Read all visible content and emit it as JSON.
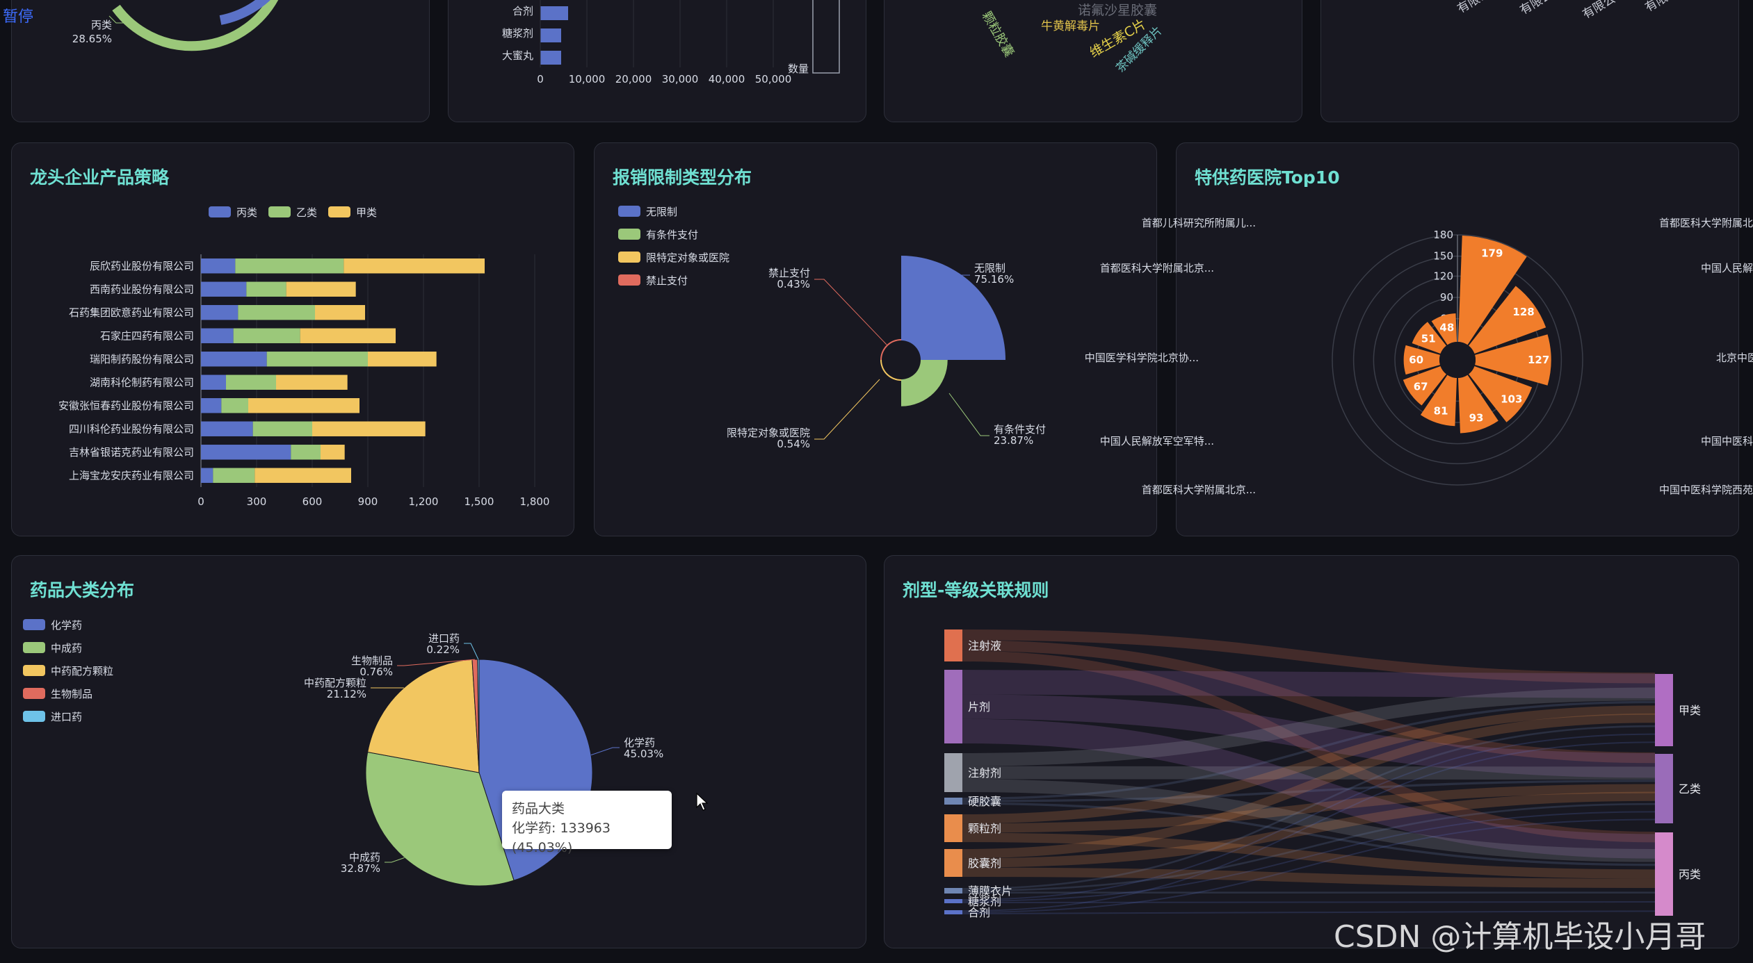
{
  "colors": {
    "blue": "#5b72c8",
    "green": "#9bc87a",
    "yellow": "#f2c660",
    "red": "#e06b5e",
    "cyan": "#6ec2e8",
    "orange": "#f17d2b",
    "title": "#6fe0d2"
  },
  "top": {
    "pause_label": "暂停",
    "ring_label": "丙类",
    "ring_pct": "28.65%",
    "bar_top_categories": [
      "合剂",
      "糖浆剂",
      "大蜜丸"
    ],
    "bar_top_ticks": [
      "0",
      "10,000",
      "20,000",
      "30,000",
      "40,000",
      "50,000"
    ],
    "bar_top_legend": "数量",
    "cloud_words": [
      "诺氟沙星胶囊",
      "牛黄解毒片",
      "维生素C片",
      "茶碱缓释片",
      "颗粒胶囊"
    ],
    "cloud4_words": [
      "有限公司",
      "有限公司",
      "有限公司",
      "有限公司"
    ]
  },
  "strategy": {
    "title": "龙头企业产品策略",
    "legend": [
      "丙类",
      "乙类",
      "甲类"
    ],
    "chart_data": {
      "type": "bar",
      "orientation": "horizontal-stacked",
      "categories": [
        "辰欣药业股份有限公司",
        "西南药业股份有限公司",
        "石药集团欧意药业有限公司",
        "石家庄四药有限公司",
        "瑞阳制药股份有限公司",
        "湖南科伦制药有限公司",
        "安徽张恒春药业股份有限公司",
        "四川科伦药业股份有限公司",
        "吉林省银诺克药业有限公司",
        "上海宝龙安庆药业有限公司"
      ],
      "series": [
        {
          "name": "丙类",
          "values": [
            185,
            245,
            200,
            175,
            355,
            135,
            110,
            280,
            485,
            65
          ]
        },
        {
          "name": "乙类",
          "values": [
            585,
            215,
            415,
            360,
            545,
            270,
            145,
            320,
            160,
            225
          ]
        },
        {
          "name": "甲类",
          "values": [
            760,
            375,
            270,
            515,
            370,
            385,
            600,
            610,
            130,
            520
          ]
        }
      ],
      "ticks": [
        "0",
        "300",
        "600",
        "900",
        "1,200",
        "1,500",
        "1,800"
      ],
      "xlim": [
        0,
        1800
      ]
    }
  },
  "reimb": {
    "title": "报销限制类型分布",
    "legend": [
      "无限制",
      "有条件支付",
      "限特定对象或医院",
      "禁止支付"
    ],
    "chart_data": {
      "type": "pie",
      "variant": "rose",
      "labels": [
        "无限制",
        "有条件支付",
        "限特定对象或医院",
        "禁止支付"
      ],
      "values": [
        75.16,
        23.87,
        0.54,
        0.43
      ],
      "pct_labels": [
        "75.16%",
        "23.87%",
        "0.54%",
        "0.43%"
      ]
    }
  },
  "hospitals": {
    "title": "特供药医院Top10",
    "chart_data": {
      "type": "bar",
      "variant": "polar",
      "labels": [
        "首都医科大学附属北京...",
        "中国人民解放军总医院...",
        "北京中医药大学东直门...",
        "中国中医科学院广安门...",
        "中国中医科学院西苑医...",
        "首都医科大学附属北京...",
        "中国人民解放军空军特...",
        "中国医学科学院北京协...",
        "首都医科大学附属北京...",
        "首都儿科研究所附属儿..."
      ],
      "values": [
        179,
        128,
        127,
        103,
        93,
        81,
        67,
        60,
        51,
        48
      ],
      "value_labels": [
        "179",
        "128",
        "127",
        "103",
        "93",
        "81",
        "67",
        "60",
        "51",
        "48"
      ],
      "ticks": [
        "60",
        "90",
        "120",
        "150",
        "180"
      ],
      "rmax": 180
    }
  },
  "category": {
    "title": "药品大类分布",
    "legend": [
      "化学药",
      "中成药",
      "中药配方颗粒",
      "生物制品",
      "进口药"
    ],
    "chart_data": {
      "type": "pie",
      "labels": [
        "化学药",
        "中成药",
        "中药配方颗粒",
        "生物制品",
        "进口药"
      ],
      "values": [
        45.03,
        32.87,
        21.12,
        0.76,
        0.22
      ],
      "pct_labels": [
        "45.03%",
        "32.87%",
        "21.12%",
        "0.76%",
        "0.22%"
      ]
    },
    "tooltip_title": "药品大类",
    "tooltip_value": "化学药: 133963 (45.03%)"
  },
  "sankey": {
    "title": "剂型-等级关联规则",
    "chart_data": {
      "type": "sankey",
      "sources": [
        "注射液",
        "片剂",
        "注射剂",
        "硬胶囊",
        "颗粒剂",
        "胶囊剂",
        "薄膜衣片",
        "糖浆剂",
        "合剂"
      ],
      "targets": [
        "甲类",
        "乙类",
        "丙类"
      ]
    }
  },
  "watermark": "CSDN @计算机毕设小月哥"
}
